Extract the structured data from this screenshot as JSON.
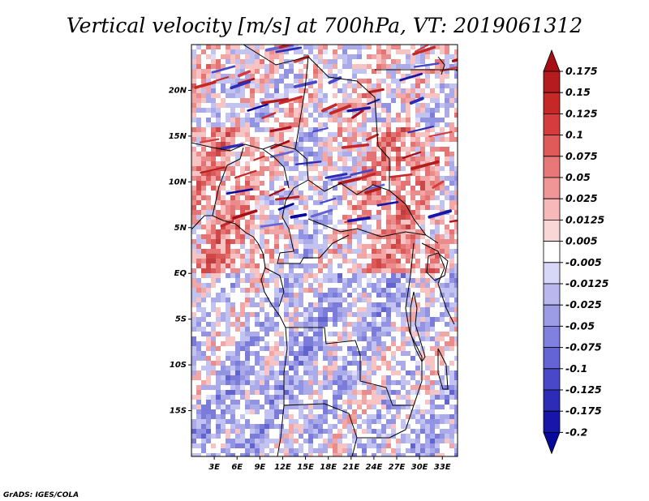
{
  "chart_data": {
    "type": "heatmap",
    "title": "Vertical velocity [m/s] at 700hPa, VT: 2019061312",
    "variable": "Vertical velocity",
    "units": "m/s",
    "level": "700hPa",
    "valid_time": "2019061312",
    "x_range": [
      0,
      35
    ],
    "y_range": [
      -20,
      25
    ],
    "x_ticks": [
      {
        "label": "3E",
        "lon": 3
      },
      {
        "label": "6E",
        "lon": 6
      },
      {
        "label": "9E",
        "lon": 9
      },
      {
        "label": "12E",
        "lon": 12
      },
      {
        "label": "15E",
        "lon": 15
      },
      {
        "label": "18E",
        "lon": 18
      },
      {
        "label": "21E",
        "lon": 21
      },
      {
        "label": "24E",
        "lon": 24
      },
      {
        "label": "27E",
        "lon": 27
      },
      {
        "label": "30E",
        "lon": 30
      },
      {
        "label": "33E",
        "lon": 33
      }
    ],
    "y_ticks": [
      {
        "label": "20N",
        "lat": 20
      },
      {
        "label": "15N",
        "lat": 15
      },
      {
        "label": "10N",
        "lat": 10
      },
      {
        "label": "5N",
        "lat": 5
      },
      {
        "label": "EQ",
        "lat": 0
      },
      {
        "label": "5S",
        "lat": -5
      },
      {
        "label": "10S",
        "lat": -10
      },
      {
        "label": "15S",
        "lat": -15
      }
    ],
    "colorbar": {
      "orientation": "vertical",
      "position": "right",
      "labels": [
        "0.175",
        "0.15",
        "0.125",
        "0.1",
        "0.075",
        "0.05",
        "0.025",
        "0.0125",
        "0.005",
        "-0.005",
        "-0.0125",
        "-0.025",
        "-0.05",
        "-0.075",
        "-0.1",
        "-0.125",
        "-0.175",
        "-0.2"
      ],
      "colors_top_to_bottom": [
        "#a50f15",
        "#b51c1e",
        "#c62828",
        "#d73c3c",
        "#e05a5a",
        "#e87878",
        "#f09696",
        "#f6b8b8",
        "#fad7d7",
        "#ffffff",
        "#d7d7f7",
        "#b8b8ef",
        "#9c9ce6",
        "#8080de",
        "#6464d4",
        "#4848c8",
        "#2c2cb8",
        "#1616a8",
        "#08089a"
      ]
    }
  },
  "footer": {
    "credit": "GrADS: IGES/COLA"
  }
}
